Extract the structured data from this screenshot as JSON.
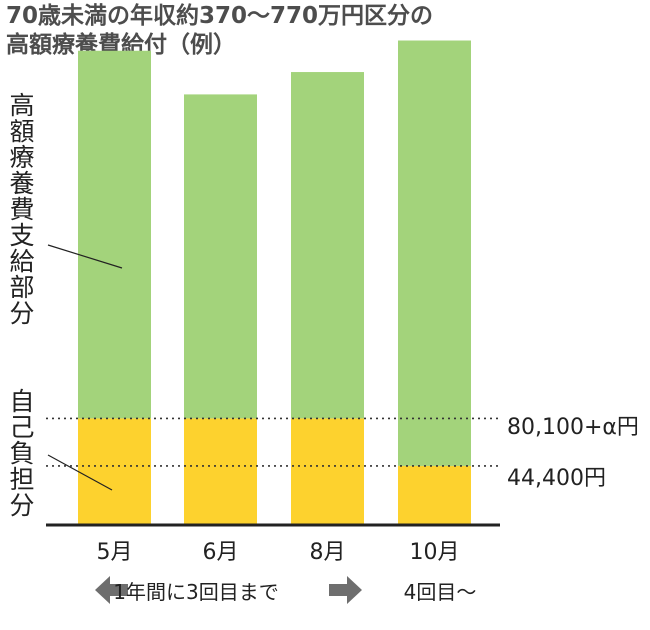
{
  "title": {
    "line1": "70歳未満の年収約370〜770万円区分の",
    "line2": "高額療養費給付（例）"
  },
  "labels": {
    "benefit": "高額療養費支給部分",
    "selfpay": "自己負担分"
  },
  "reference_lines": {
    "upper": "80,100+α円",
    "lower": "44,400円"
  },
  "footer": {
    "left_text": "1年間に3回目まで",
    "right_text": "4回目〜"
  },
  "colors": {
    "benefit": "#a3d37b",
    "selfpay": "#fdd22e",
    "arrow": "#6e6e6e",
    "baseline": "#222222"
  },
  "chart_data": {
    "type": "bar",
    "stacked": true,
    "categories": [
      "5月",
      "6月",
      "8月",
      "10月"
    ],
    "series": [
      {
        "name": "自己負担分",
        "values": [
          80100,
          80100,
          80100,
          44400
        ]
      },
      {
        "name": "高額療養費支給部分",
        "values": [
          276300,
          243500,
          260300,
          319700
        ]
      }
    ],
    "ylim": [
      0,
      372000
    ],
    "reference_values": [
      80100,
      44400
    ]
  }
}
